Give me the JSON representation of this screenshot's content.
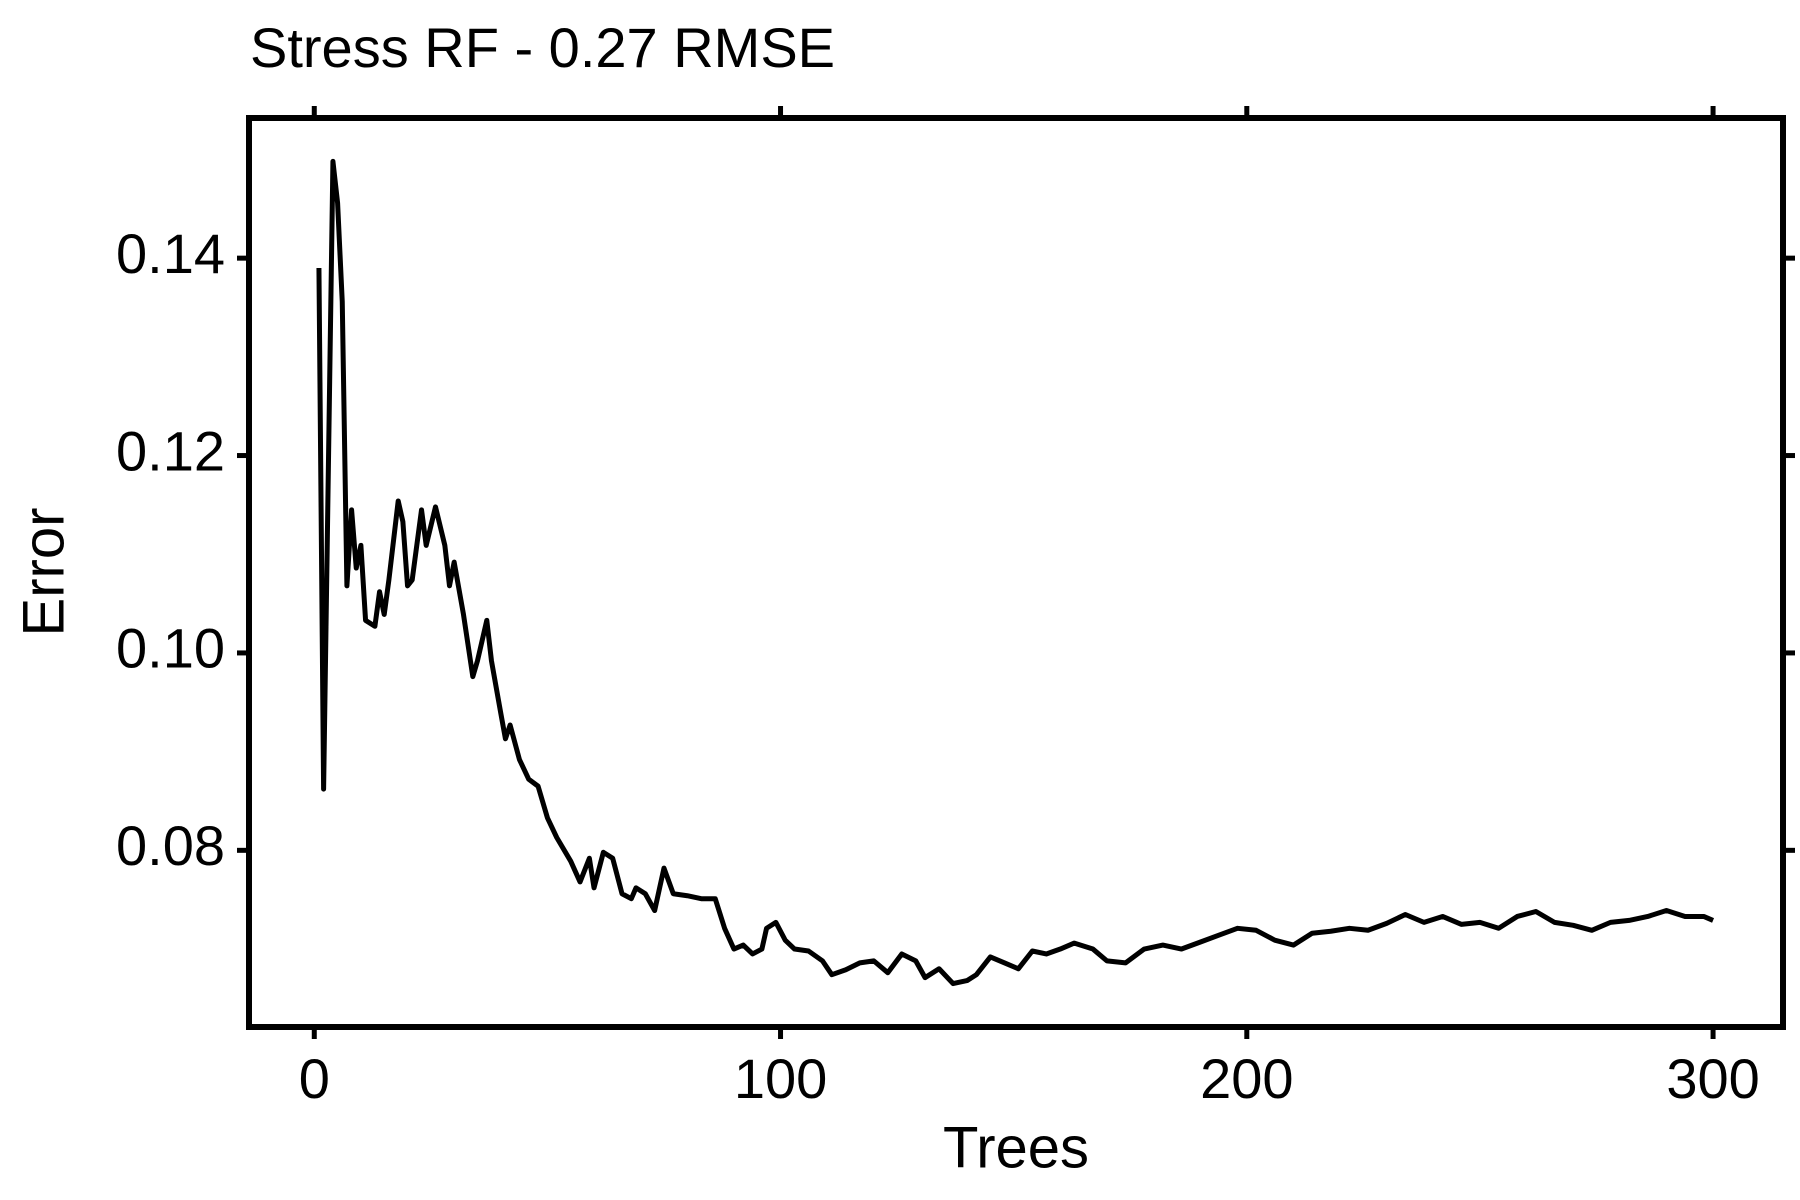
{
  "chart_data": {
    "type": "line",
    "title": "Stress RF - 0.27 RMSE",
    "x_label": "Trees",
    "y_label": "Error",
    "x": [
      1,
      2,
      4,
      5,
      6,
      7,
      8,
      9,
      10,
      11,
      13,
      14,
      15,
      16,
      18,
      19,
      20,
      21,
      23,
      24,
      26,
      28,
      29,
      30,
      32,
      34,
      35,
      37,
      38,
      40,
      41,
      42,
      44,
      46,
      48,
      50,
      52,
      55,
      57,
      59,
      60,
      62,
      64,
      66,
      68,
      69,
      71,
      73,
      75,
      77,
      80,
      83,
      86,
      88,
      90,
      92,
      94,
      96,
      97,
      99,
      101,
      103,
      106,
      109,
      111,
      114,
      117,
      120,
      123,
      126,
      129,
      131,
      134,
      137,
      140,
      142,
      145,
      148,
      151,
      154,
      157,
      160,
      163,
      167,
      170,
      174,
      178,
      182,
      186,
      190,
      194,
      198,
      202,
      206,
      210,
      214,
      218,
      222,
      226,
      230,
      234,
      238,
      242,
      246,
      250,
      254,
      258,
      262,
      266,
      270,
      274,
      278,
      282,
      286,
      290,
      294,
      298,
      300
    ],
    "series": [
      {
        "name": "Error",
        "color": "#000000",
        "values": [
          0.139,
          0.0862,
          0.1498,
          0.1456,
          0.1356,
          0.1068,
          0.1145,
          0.1086,
          0.1109,
          0.1033,
          0.1027,
          0.1062,
          0.1039,
          0.1074,
          0.1154,
          0.1133,
          0.1068,
          0.1074,
          0.1145,
          0.1109,
          0.1148,
          0.1109,
          0.1068,
          0.1092,
          0.1039,
          0.0976,
          0.0992,
          0.1033,
          0.0992,
          0.0939,
          0.0913,
          0.0927,
          0.0892,
          0.0872,
          0.0865,
          0.0833,
          0.0813,
          0.0789,
          0.0768,
          0.0792,
          0.0762,
          0.0798,
          0.0792,
          0.0756,
          0.0751,
          0.0762,
          0.0756,
          0.0739,
          0.0782,
          0.0756,
          0.0754,
          0.0751,
          0.0751,
          0.0721,
          0.07,
          0.0704,
          0.0695,
          0.07,
          0.0721,
          0.0727,
          0.0709,
          0.07,
          0.0698,
          0.0688,
          0.0674,
          0.0679,
          0.0686,
          0.0688,
          0.0676,
          0.0695,
          0.0688,
          0.0671,
          0.068,
          0.0665,
          0.0668,
          0.0674,
          0.0692,
          0.0686,
          0.068,
          0.0698,
          0.0695,
          0.07,
          0.0706,
          0.07,
          0.0688,
          0.0686,
          0.07,
          0.0704,
          0.07,
          0.0707,
          0.0714,
          0.0721,
          0.0719,
          0.0709,
          0.0704,
          0.0716,
          0.0718,
          0.0721,
          0.0719,
          0.0726,
          0.0735,
          0.0727,
          0.0733,
          0.0725,
          0.0727,
          0.0721,
          0.0733,
          0.0738,
          0.0727,
          0.0724,
          0.0719,
          0.0727,
          0.0729,
          0.0733,
          0.0739,
          0.0733,
          0.0733,
          0.0729
        ]
      }
    ],
    "xlim": [
      -14,
      315
    ],
    "ylim": [
      0.0621,
      0.1542
    ],
    "xticks": [
      0,
      100,
      200,
      300
    ],
    "yticks": [
      0.08,
      {
        "value": 0.1,
        "label": "0.10"
      },
      0.12,
      0.14
    ]
  }
}
